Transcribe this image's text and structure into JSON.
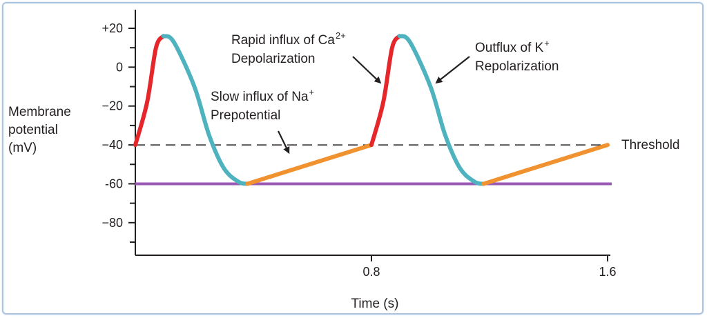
{
  "chart_data": {
    "type": "line",
    "title": "",
    "ylabel_lines": [
      "Membrane",
      "potential",
      "(mV)"
    ],
    "xlabel": "Time (s)",
    "xlim": [
      0,
      1.6
    ],
    "ylim": [
      -90,
      20
    ],
    "x_ticks": [
      {
        "value": 0.8,
        "label": "0.8"
      },
      {
        "value": 1.6,
        "label": "1.6"
      }
    ],
    "y_ticks": [
      {
        "value": 20,
        "label": "+20"
      },
      {
        "value": 0,
        "label": "0"
      },
      {
        "value": -20,
        "label": "−20"
      },
      {
        "value": -40,
        "label": "−40"
      },
      {
        "value": -60,
        "label": "-60"
      },
      {
        "value": -80,
        "label": "−80"
      }
    ],
    "y_minor_ticks": [
      10,
      -10,
      -30,
      -50,
      -70,
      -90
    ],
    "threshold": {
      "value": -40,
      "label": "Threshold"
    },
    "baseline": {
      "value": -60
    },
    "segments": [
      {
        "phase": "depolarization",
        "color": "#e5262b",
        "points": [
          [
            0,
            -40
          ],
          [
            0.04,
            -18
          ],
          [
            0.07,
            10
          ],
          [
            0.095,
            16
          ]
        ]
      },
      {
        "phase": "repolarization",
        "color": "#4fb3bf",
        "points": [
          [
            0.095,
            16
          ],
          [
            0.13,
            13
          ],
          [
            0.2,
            -10
          ],
          [
            0.25,
            -35
          ],
          [
            0.3,
            -52
          ],
          [
            0.35,
            -59
          ],
          [
            0.38,
            -60
          ]
        ]
      },
      {
        "phase": "prepotential",
        "color": "#f0922f",
        "points": [
          [
            0.38,
            -60
          ],
          [
            0.8,
            -40
          ]
        ]
      },
      {
        "phase": "depolarization",
        "color": "#e5262b",
        "points": [
          [
            0.8,
            -40
          ],
          [
            0.84,
            -18
          ],
          [
            0.87,
            10
          ],
          [
            0.895,
            16
          ]
        ]
      },
      {
        "phase": "repolarization",
        "color": "#4fb3bf",
        "points": [
          [
            0.895,
            16
          ],
          [
            0.93,
            13
          ],
          [
            1.0,
            -10
          ],
          [
            1.05,
            -35
          ],
          [
            1.1,
            -52
          ],
          [
            1.15,
            -59
          ],
          [
            1.18,
            -60
          ]
        ]
      },
      {
        "phase": "prepotential",
        "color": "#f0922f",
        "points": [
          [
            1.18,
            -60
          ],
          [
            1.6,
            -40
          ]
        ]
      }
    ],
    "annotations": [
      {
        "lines": [
          "Slow influx of Na",
          "Prepotential"
        ],
        "superscript": "+",
        "arrow_tip": [
          0.52,
          -44
        ]
      },
      {
        "lines": [
          "Rapid influx of Ca",
          "Depolarization"
        ],
        "superscript": "2+",
        "arrow_tip": [
          0.83,
          -8
        ]
      },
      {
        "lines": [
          "Outflux of K",
          "Repolarization"
        ],
        "superscript": "+",
        "arrow_tip": [
          1.02,
          -8
        ]
      }
    ],
    "colors": {
      "depolarization": "#e5262b",
      "repolarization": "#4fb3bf",
      "prepotential": "#f0922f",
      "baseline": "#9b59b6",
      "threshold": "#231f20",
      "axis": "#231f20"
    }
  }
}
